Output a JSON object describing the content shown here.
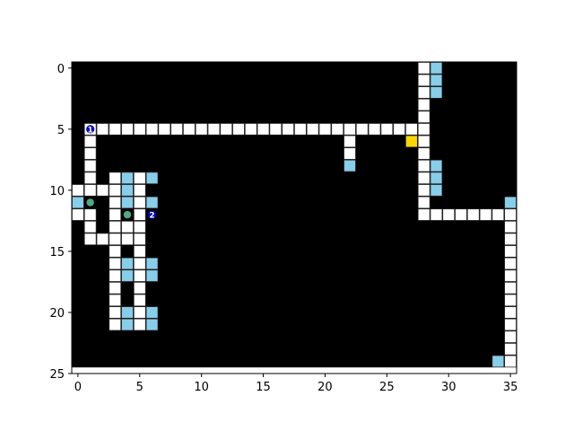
{
  "chart_data": {
    "type": "heatmap",
    "title": "",
    "xlabel": "",
    "ylabel": "",
    "xlim": [
      -0.5,
      35.5
    ],
    "ylim": [
      25,
      -0.5
    ],
    "y_axis_inverted": true,
    "grid": false,
    "x_ticks": [
      0,
      5,
      10,
      15,
      20,
      25,
      30,
      35
    ],
    "y_ticks": [
      0,
      5,
      10,
      15,
      20,
      25
    ],
    "colors": {
      "background": "#000000",
      "floor": "#ffffff",
      "special": "#87ceeb",
      "goal": "#ffd700",
      "agent": "#0000cd",
      "ball": "#4ea88a"
    },
    "floor_cells": [
      [
        28,
        0
      ],
      [
        28,
        1
      ],
      [
        28,
        2
      ],
      [
        28,
        3
      ],
      [
        28,
        4
      ],
      [
        28,
        5
      ],
      [
        28,
        6
      ],
      [
        28,
        7
      ],
      [
        28,
        8
      ],
      [
        28,
        9
      ],
      [
        28,
        10
      ],
      [
        28,
        11
      ],
      [
        28,
        12
      ],
      [
        1,
        5
      ],
      [
        2,
        5
      ],
      [
        3,
        5
      ],
      [
        4,
        5
      ],
      [
        5,
        5
      ],
      [
        6,
        5
      ],
      [
        7,
        5
      ],
      [
        8,
        5
      ],
      [
        9,
        5
      ],
      [
        10,
        5
      ],
      [
        11,
        5
      ],
      [
        12,
        5
      ],
      [
        13,
        5
      ],
      [
        14,
        5
      ],
      [
        15,
        5
      ],
      [
        16,
        5
      ],
      [
        17,
        5
      ],
      [
        18,
        5
      ],
      [
        19,
        5
      ],
      [
        20,
        5
      ],
      [
        21,
        5
      ],
      [
        22,
        5
      ],
      [
        23,
        5
      ],
      [
        24,
        5
      ],
      [
        25,
        5
      ],
      [
        26,
        5
      ],
      [
        27,
        5
      ],
      [
        1,
        6
      ],
      [
        1,
        7
      ],
      [
        1,
        8
      ],
      [
        1,
        9
      ],
      [
        22,
        6
      ],
      [
        22,
        7
      ],
      [
        0,
        10
      ],
      [
        1,
        10
      ],
      [
        2,
        10
      ],
      [
        3,
        9
      ],
      [
        3,
        10
      ],
      [
        3,
        11
      ],
      [
        3,
        12
      ],
      [
        3,
        13
      ],
      [
        3,
        14
      ],
      [
        3,
        15
      ],
      [
        3,
        16
      ],
      [
        3,
        17
      ],
      [
        3,
        18
      ],
      [
        3,
        19
      ],
      [
        3,
        20
      ],
      [
        3,
        21
      ],
      [
        5,
        9
      ],
      [
        5,
        10
      ],
      [
        5,
        11
      ],
      [
        5,
        12
      ],
      [
        5,
        13
      ],
      [
        5,
        14
      ],
      [
        5,
        15
      ],
      [
        5,
        16
      ],
      [
        5,
        17
      ],
      [
        5,
        18
      ],
      [
        5,
        19
      ],
      [
        5,
        20
      ],
      [
        5,
        21
      ],
      [
        0,
        12
      ],
      [
        1,
        12
      ],
      [
        1,
        13
      ],
      [
        1,
        14
      ],
      [
        2,
        14
      ],
      [
        4,
        14
      ],
      [
        4,
        13
      ],
      [
        29,
        12
      ],
      [
        30,
        12
      ],
      [
        31,
        12
      ],
      [
        32,
        12
      ],
      [
        33,
        12
      ],
      [
        34,
        12
      ],
      [
        35,
        12
      ],
      [
        35,
        13
      ],
      [
        35,
        14
      ],
      [
        35,
        15
      ],
      [
        35,
        16
      ],
      [
        35,
        17
      ],
      [
        35,
        18
      ],
      [
        35,
        19
      ],
      [
        35,
        20
      ],
      [
        35,
        21
      ],
      [
        35,
        22
      ],
      [
        35,
        23
      ],
      [
        35,
        24
      ]
    ],
    "special_cells": [
      [
        29,
        0
      ],
      [
        29,
        1
      ],
      [
        29,
        2
      ],
      [
        29,
        8
      ],
      [
        29,
        9
      ],
      [
        29,
        10
      ],
      [
        22,
        8
      ],
      [
        35,
        11
      ],
      [
        34,
        24
      ],
      [
        4,
        9
      ],
      [
        6,
        9
      ],
      [
        4,
        10
      ],
      [
        0,
        11
      ],
      [
        4,
        11
      ],
      [
        6,
        11
      ],
      [
        4,
        16
      ],
      [
        6,
        16
      ],
      [
        4,
        17
      ],
      [
        6,
        17
      ],
      [
        4,
        20
      ],
      [
        6,
        20
      ],
      [
        4,
        21
      ],
      [
        6,
        21
      ]
    ],
    "goal_cells": [
      [
        27,
        6
      ]
    ],
    "agents": [
      {
        "label": "1",
        "x": 1,
        "y": 5
      },
      {
        "label": "2",
        "x": 6,
        "y": 12
      }
    ],
    "balls": [
      {
        "x": 1,
        "y": 11
      },
      {
        "x": 4,
        "y": 12
      }
    ]
  }
}
